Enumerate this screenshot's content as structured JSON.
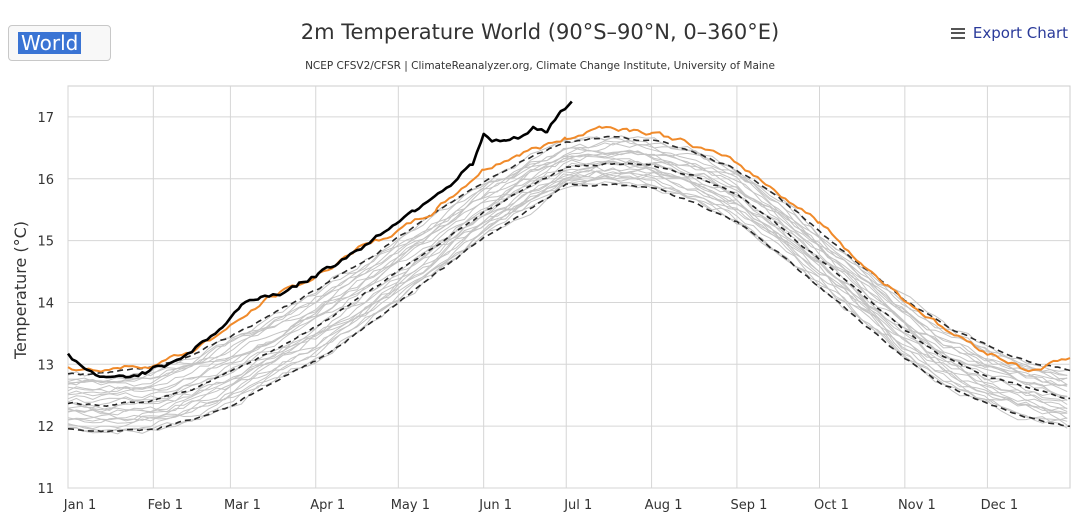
{
  "region_select": {
    "value": "World"
  },
  "export": {
    "label": "Export Chart",
    "icon": "menu-icon"
  },
  "chart_data": {
    "type": "line",
    "title": "2m Temperature World (90°S–90°N, 0–360°E)",
    "subtitle": "NCEP CFSV2/CFSR | ClimateReanalyzer.org, Climate Change Institute, University of Maine",
    "ylabel": "Temperature (°C)",
    "xlabel": "",
    "ylim": [
      11,
      17.5
    ],
    "yticks": [
      11,
      12,
      13,
      14,
      15,
      16,
      17
    ],
    "xlim": [
      1,
      365
    ],
    "month_ticks": [
      {
        "label": "Jan 1",
        "day": 1
      },
      {
        "label": "Feb 1",
        "day": 32
      },
      {
        "label": "Mar 1",
        "day": 60
      },
      {
        "label": "Apr 1",
        "day": 91
      },
      {
        "label": "May 1",
        "day": 121
      },
      {
        "label": "Jun 1",
        "day": 152
      },
      {
        "label": "Jul 1",
        "day": 182
      },
      {
        "label": "Aug 1",
        "day": 213
      },
      {
        "label": "Sep 1",
        "day": 244
      },
      {
        "label": "Oct 1",
        "day": 274
      },
      {
        "label": "Nov 1",
        "day": 305
      },
      {
        "label": "Dec 1",
        "day": 335
      }
    ],
    "grid": true,
    "colors": {
      "current": "#000000",
      "previous": "#f08a2a",
      "band": "#8a8a8a",
      "mean": "#222222",
      "history": "#c4c4c4"
    },
    "series": [
      {
        "style": "solid-black",
        "x": [
          1,
          8,
          15,
          22,
          29,
          36,
          43,
          50,
          57,
          64,
          71,
          78,
          85,
          92,
          99,
          106,
          113,
          120,
          127,
          134,
          141,
          148,
          152,
          155,
          160,
          165,
          170,
          175,
          180,
          184
        ],
        "y": [
          13.15,
          12.9,
          12.75,
          12.8,
          12.88,
          13.0,
          13.15,
          13.35,
          13.6,
          13.95,
          14.1,
          14.15,
          14.3,
          14.45,
          14.65,
          14.85,
          15.05,
          15.3,
          15.5,
          15.75,
          15.95,
          16.25,
          16.7,
          16.6,
          16.6,
          16.65,
          16.8,
          16.75,
          17.1,
          17.25
        ]
      },
      {
        "style": "solid-orange",
        "x": [
          1,
          10,
          20,
          32,
          45,
          60,
          75,
          91,
          105,
          121,
          135,
          152,
          165,
          182,
          195,
          205,
          213,
          225,
          244,
          260,
          274,
          290,
          305,
          320,
          335,
          350,
          365
        ],
        "y": [
          12.95,
          12.9,
          12.95,
          13.0,
          13.2,
          13.6,
          14.1,
          14.4,
          14.85,
          15.15,
          15.5,
          16.15,
          16.4,
          16.65,
          16.85,
          16.8,
          16.75,
          16.6,
          16.25,
          15.75,
          15.3,
          14.6,
          14.05,
          13.55,
          13.2,
          12.9,
          13.1
        ]
      },
      {
        "style": "dashed-mean",
        "x": [
          1,
          15,
          32,
          46,
          60,
          75,
          91,
          106,
          121,
          136,
          152,
          167,
          182,
          197,
          213,
          228,
          244,
          259,
          274,
          289,
          305,
          320,
          335,
          350,
          365
        ],
        "y": [
          12.38,
          12.35,
          12.42,
          12.6,
          12.88,
          13.22,
          13.6,
          14.05,
          14.5,
          14.95,
          15.45,
          15.85,
          16.18,
          16.25,
          16.22,
          16.05,
          15.75,
          15.25,
          14.7,
          14.15,
          13.55,
          13.1,
          12.8,
          12.62,
          12.45
        ]
      },
      {
        "style": "dashed-band",
        "x": [
          1,
          15,
          32,
          46,
          60,
          75,
          91,
          106,
          121,
          136,
          152,
          167,
          182,
          197,
          213,
          228,
          244,
          259,
          274,
          289,
          305,
          320,
          335,
          350,
          365
        ],
        "y": [
          12.85,
          12.85,
          12.95,
          13.15,
          13.45,
          13.8,
          14.2,
          14.6,
          15.05,
          15.5,
          15.95,
          16.32,
          16.6,
          16.68,
          16.62,
          16.45,
          16.15,
          15.7,
          15.15,
          14.6,
          14.05,
          13.6,
          13.3,
          13.05,
          12.9
        ]
      },
      {
        "style": "dashed-band",
        "x": [
          1,
          15,
          32,
          46,
          60,
          75,
          91,
          106,
          121,
          136,
          152,
          167,
          182,
          197,
          213,
          228,
          244,
          259,
          274,
          289,
          305,
          320,
          335,
          350,
          365
        ],
        "y": [
          11.95,
          11.92,
          11.95,
          12.1,
          12.32,
          12.7,
          13.05,
          13.5,
          14.0,
          14.5,
          15.05,
          15.45,
          15.9,
          15.9,
          15.88,
          15.62,
          15.3,
          14.8,
          14.25,
          13.7,
          13.1,
          12.65,
          12.35,
          12.15,
          12.0
        ]
      }
    ]
  }
}
